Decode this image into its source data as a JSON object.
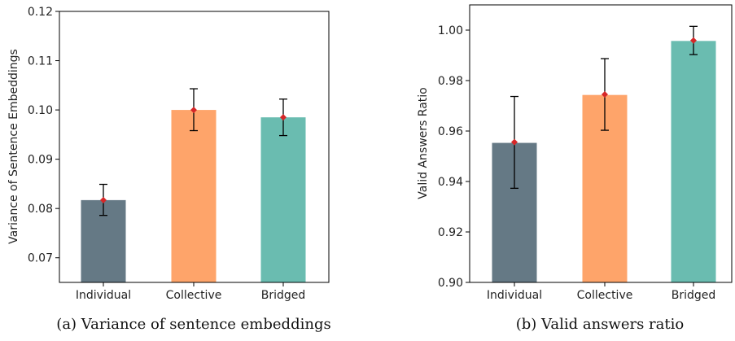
{
  "chart_data": [
    {
      "type": "bar",
      "caption": "(a) Variance of sentence embeddings",
      "title": "",
      "xlabel": "",
      "ylabel": "Variance of Sentence Embeddings",
      "ylim": [
        0.065,
        0.12
      ],
      "yticks": [
        0.07,
        0.08,
        0.09,
        0.1,
        0.11,
        0.12
      ],
      "ytick_labels": [
        "0.07",
        "0.08",
        "0.09",
        "0.10",
        "0.11",
        "0.12"
      ],
      "categories": [
        "Individual",
        "Collective",
        "Bridged"
      ],
      "values": [
        0.0817,
        0.1,
        0.0985
      ],
      "error_low": [
        0.0786,
        0.0958,
        0.0948
      ],
      "error_high": [
        0.0849,
        0.1043,
        0.1022
      ],
      "markers": [
        0.0817,
        0.1,
        0.0985
      ],
      "colors": [
        "#657985",
        "#fea46a",
        "#6abcb0"
      ],
      "marker_color": "#d62728",
      "grid": false,
      "legend": "none"
    },
    {
      "type": "bar",
      "caption": "(b) Valid answers ratio",
      "title": "",
      "xlabel": "",
      "ylabel": "Valid Answers Ratio",
      "ylim": [
        0.9,
        1.01
      ],
      "yticks": [
        0.9,
        0.92,
        0.94,
        0.96,
        0.98,
        1.0
      ],
      "ytick_labels": [
        "0.90",
        "0.92",
        "0.94",
        "0.96",
        "0.98",
        "1.00"
      ],
      "categories": [
        "Individual",
        "Collective",
        "Bridged"
      ],
      "values": [
        0.9553,
        0.9743,
        0.9957
      ],
      "error_low": [
        0.9373,
        0.9603,
        0.9903
      ],
      "error_high": [
        0.9737,
        0.9887,
        1.0015
      ],
      "markers": [
        0.9556,
        0.9745,
        0.9959
      ],
      "colors": [
        "#657985",
        "#fea46a",
        "#6abcb0"
      ],
      "marker_color": "#d62728",
      "grid": false,
      "legend": "none"
    }
  ]
}
